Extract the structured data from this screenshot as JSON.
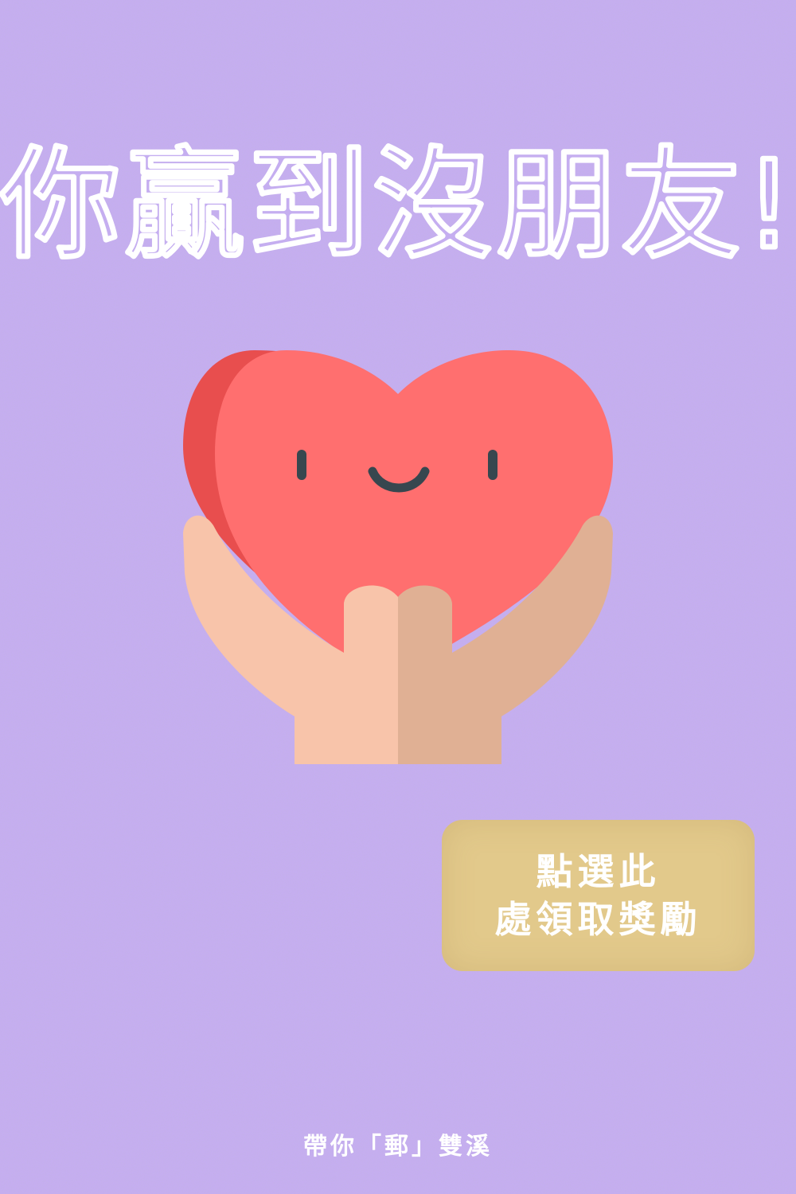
{
  "poster": {
    "title": "你贏到沒朋友!",
    "reward_button": {
      "line1": "點選此",
      "line2": "處領取獎勵"
    },
    "footer": "帶你「郵」雙溪"
  },
  "illustration": {
    "icon": "heart-in-hands-icon"
  },
  "colors": {
    "background": "#c5aef0",
    "heart": "#ff6f6f",
    "heart_shade": "#e84e4e",
    "hand_light": "#f8c4aa",
    "hand_dark": "#e0b094",
    "button": "#e2c98b",
    "text": "#ffffff"
  }
}
